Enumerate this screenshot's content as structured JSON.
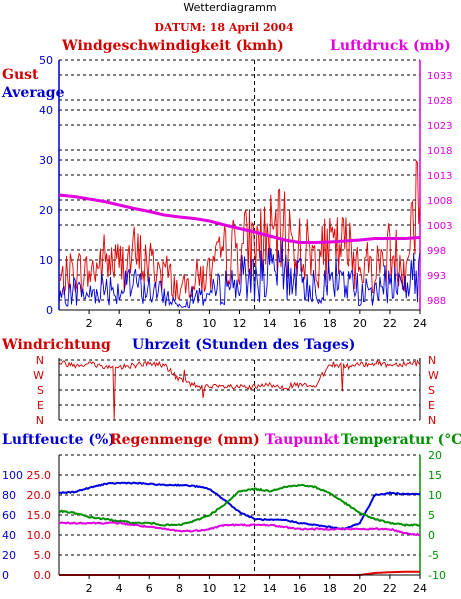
{
  "title": "Wetterdiagramm",
  "date_label": "DATUM: 18 April 2004",
  "colors": {
    "wind_gust": "#e00000",
    "wind_avg": "#0000dd",
    "pressure": "#e000e0",
    "humidity": "#0000dd",
    "rain": "#e00000",
    "dewpoint": "#e000e0",
    "temperature": "#009000",
    "dir": "#d00000"
  },
  "chart_data": [
    {
      "type": "line",
      "title": "Windgeschwindigkeit (kmh)",
      "right_title": "Luftdruck (mb)",
      "legend": [
        "Gust",
        "Average"
      ],
      "x": [
        0,
        1,
        2,
        3,
        4,
        5,
        6,
        7,
        8,
        9,
        10,
        11,
        12,
        13,
        14,
        15,
        16,
        17,
        18,
        19,
        20,
        21,
        22,
        23,
        24
      ],
      "x_ticks": [
        2,
        4,
        6,
        8,
        10,
        12,
        14,
        16,
        18,
        20,
        22,
        24
      ],
      "xlim": [
        0,
        24
      ],
      "ylim": [
        0,
        50
      ],
      "y_ticks": [
        0,
        10,
        20,
        30,
        40,
        50
      ],
      "y2lim": [
        986,
        1036
      ],
      "y2_ticks": [
        988,
        993,
        998,
        1003,
        1008,
        1013,
        1018,
        1023,
        1028,
        1033
      ],
      "grid": true,
      "marker_hour": 13,
      "series": [
        {
          "name": "Gust",
          "axis": "left",
          "values": [
            6,
            9,
            8,
            11,
            10,
            12,
            10,
            9,
            4,
            7,
            8,
            12,
            14,
            15,
            16,
            17,
            14,
            12,
            13,
            14,
            11,
            9,
            13,
            10,
            30
          ]
        },
        {
          "name": "Average",
          "axis": "left",
          "values": [
            2,
            4,
            3,
            5,
            4,
            5,
            4,
            3,
            1,
            3,
            3,
            5,
            6,
            7,
            7,
            8,
            6,
            5,
            6,
            6,
            4,
            3,
            6,
            5,
            8
          ]
        },
        {
          "name": "Luftdruck",
          "axis": "right",
          "values": [
            1009,
            1008.7,
            1008.2,
            1007.7,
            1007,
            1006.3,
            1005.7,
            1005,
            1004.6,
            1004.3,
            1003.8,
            1003,
            1002.3,
            1001.6,
            1000.8,
            1000,
            999.5,
            999.5,
            999.6,
            999.8,
            1000,
            1000.3,
            1000.3,
            1000.3,
            1000.5
          ]
        }
      ]
    },
    {
      "type": "line",
      "title": "Windrichtung",
      "xlabel": "Uhrzeit (Stunden des Tages)",
      "categories": [
        "N",
        "W",
        "S",
        "E",
        "N"
      ],
      "x": [
        0,
        1,
        2,
        3,
        4,
        5,
        6,
        7,
        8,
        9,
        10,
        11,
        12,
        13,
        14,
        15,
        16,
        17,
        18,
        19,
        20,
        21,
        22,
        23,
        24
      ],
      "xlim": [
        0,
        24
      ],
      "ylim": [
        0,
        360
      ],
      "series": [
        {
          "name": "Windrichtung",
          "values": [
            345,
            330,
            340,
            320,
            315,
            330,
            340,
            330,
            240,
            210,
            195,
            200,
            195,
            195,
            210,
            200,
            210,
            195,
            340,
            320,
            330,
            345,
            330,
            340,
            345
          ]
        }
      ]
    },
    {
      "type": "line",
      "titles": [
        "Luftfeucte (%)",
        "Regenmenge (mm)",
        "Taupunkt",
        "Temperatur (°C)"
      ],
      "x": [
        0,
        1,
        2,
        3,
        4,
        5,
        6,
        7,
        8,
        9,
        10,
        11,
        12,
        13,
        14,
        15,
        16,
        17,
        18,
        19,
        20,
        21,
        22,
        23,
        24
      ],
      "x_ticks": [
        2,
        4,
        6,
        8,
        10,
        12,
        14,
        16,
        18,
        20,
        22,
        24
      ],
      "xlim": [
        0,
        24
      ],
      "humidity_ticks": [
        0,
        20,
        40,
        60,
        80,
        100
      ],
      "rain_ticks": [
        "0.0",
        "5.0",
        "10.0",
        "15.0",
        "20.0",
        "25.0"
      ],
      "temp_ticks": [
        -10,
        -5,
        0,
        5,
        10,
        15,
        20
      ],
      "temp_lim": [
        -10,
        20
      ],
      "grid": true,
      "series": [
        {
          "name": "Luftfeuchte",
          "axis": "humidity",
          "values": [
            82,
            83,
            87,
            91,
            92,
            92,
            91,
            90,
            90,
            89,
            86,
            75,
            63,
            56,
            55,
            55,
            52,
            50,
            48,
            46,
            52,
            80,
            82,
            81,
            81
          ]
        },
        {
          "name": "Temperatur",
          "axis": "temp",
          "values": [
            6,
            5.5,
            4.5,
            4,
            3.5,
            3,
            3,
            2.5,
            2.5,
            3.5,
            5,
            7.5,
            11,
            11.5,
            11,
            12,
            12.5,
            12,
            10.5,
            8,
            5.5,
            4,
            3,
            2.5,
            2.5
          ]
        },
        {
          "name": "Taupunkt",
          "axis": "temp",
          "values": [
            3,
            3,
            3,
            3,
            3,
            2.5,
            2,
            1.5,
            1,
            1,
            1.5,
            2.5,
            2.5,
            2.5,
            2.5,
            2,
            1.5,
            1.5,
            1.5,
            1.5,
            1.5,
            1.5,
            1.5,
            0.5,
            0
          ]
        },
        {
          "name": "Regenmenge",
          "axis": "rain",
          "values": [
            0,
            0,
            0,
            0,
            0,
            0,
            0,
            0,
            0,
            0,
            0,
            0,
            0,
            0,
            0,
            0,
            0,
            0,
            0,
            0,
            0,
            0.5,
            0.7,
            0.8,
            0.8
          ]
        }
      ]
    }
  ]
}
